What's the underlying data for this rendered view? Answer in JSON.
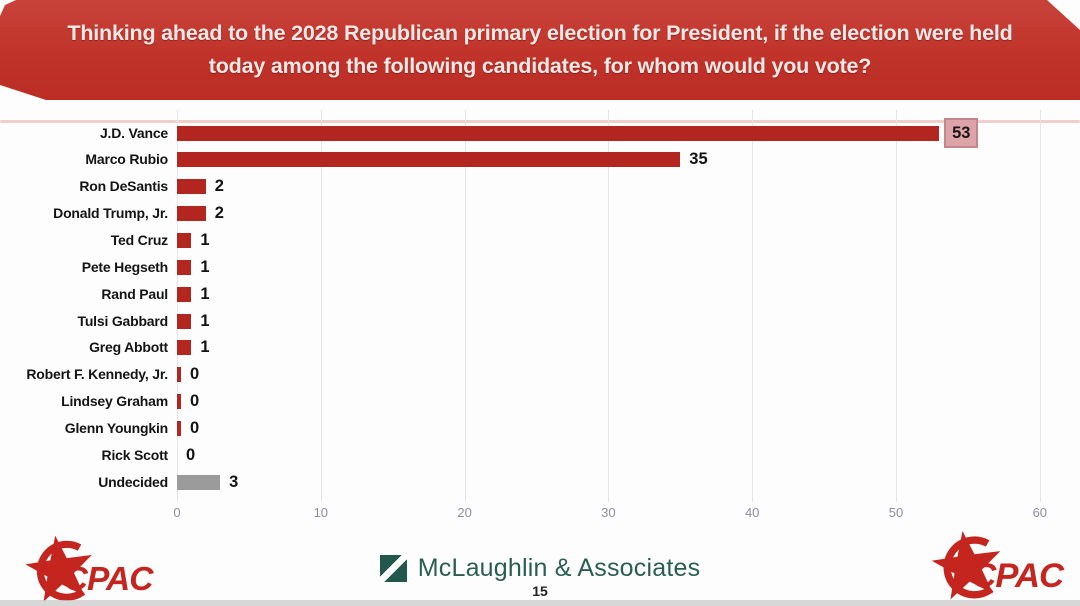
{
  "header": {
    "line1": "Thinking ahead to the 2028 Republican primary election for President, if the election were held",
    "line2": "today among the following candidates, for whom would you vote?"
  },
  "chart_data": {
    "type": "bar",
    "orientation": "horizontal",
    "title": "Thinking ahead to the 2028 Republican primary election for President, if the election were held today among the following candidates, for whom would you vote?",
    "categories": [
      "J.D. Vance",
      "Marco Rubio",
      "Ron DeSantis",
      "Donald Trump, Jr.",
      "Ted Cruz",
      "Pete Hegseth",
      "Rand Paul",
      "Tulsi Gabbard",
      "Greg Abbott",
      "Robert F. Kennedy, Jr.",
      "Lindsey Graham",
      "Glenn Youngkin",
      "Rick Scott",
      "Undecided"
    ],
    "values": [
      53,
      35,
      2,
      2,
      1,
      1,
      1,
      1,
      1,
      0,
      0,
      0,
      0,
      3
    ],
    "value_labels": [
      "53",
      "35",
      "2",
      "2",
      "1",
      "1",
      "1",
      "1",
      "1",
      "0",
      "0",
      "0",
      "0",
      "3"
    ],
    "xlim": [
      0,
      60
    ],
    "xticks": [
      0,
      10,
      20,
      30,
      40,
      50,
      60
    ],
    "grid": true,
    "legend": null,
    "highlight_index": 0,
    "zero_sliver_indices": [
      9,
      10,
      11
    ],
    "bar_color_default": "#b2261f",
    "bar_color_overrides": {
      "13": "#9b9b9b"
    }
  },
  "footer": {
    "cpac_left": "CPAC",
    "cpac_right": "CPAC",
    "source_name": "McLaughlin & Associates",
    "page_number": "15"
  },
  "colors": {
    "banner_red": "#c0332a",
    "bar_red": "#b2261f",
    "undecided_gray": "#9b9b9b",
    "highlight_pink_bg": "#dca4a9",
    "highlight_pink_border": "#c2868d",
    "cpac_red": "#c4251e",
    "mclaughlin_green": "#2b5e52",
    "gridline": "#e4e4ea",
    "tick_text": "#8d8f9a"
  }
}
